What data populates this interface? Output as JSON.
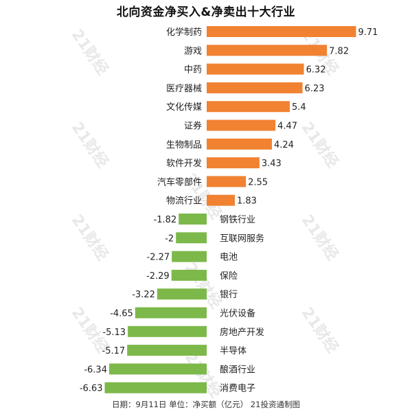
{
  "watermark": "21财经",
  "footer": "日期：9月11日 单位：净买额（亿元） 21投资通制图",
  "chart_data": {
    "type": "bar",
    "orientation": "horizontal",
    "title": "北向资金净买入&净卖出十大行业",
    "categories": [
      "化学制药",
      "游戏",
      "中药",
      "医疗器械",
      "文化传媒",
      "证券",
      "生物制品",
      "软件开发",
      "汽车零部件",
      "物流行业",
      "钢铁行业",
      "互联网服务",
      "电池",
      "保险",
      "银行",
      "光伏设备",
      "房地产开发",
      "半导体",
      "酿酒行业",
      "消费电子"
    ],
    "values": [
      9.71,
      7.82,
      6.32,
      6.23,
      5.4,
      4.47,
      4.24,
      3.43,
      2.55,
      1.83,
      -1.82,
      -2,
      -2.27,
      -2.29,
      -3.22,
      -4.65,
      -5.13,
      -5.17,
      -6.34,
      -6.63
    ],
    "value_labels": [
      "9.71",
      "7.82",
      "6.32",
      "6.23",
      "5.4",
      "4.47",
      "4.24",
      "3.43",
      "2.55",
      "1.83",
      "-1.82",
      "-2",
      "-2.27",
      "-2.29",
      "-3.22",
      "-4.65",
      "-5.13",
      "-5.17",
      "-6.34",
      "-6.63"
    ],
    "colors": {
      "positive": "#F08232",
      "negative": "#7DB84A"
    },
    "xlabel": "",
    "ylabel": "",
    "grid": false,
    "legend": "none"
  }
}
